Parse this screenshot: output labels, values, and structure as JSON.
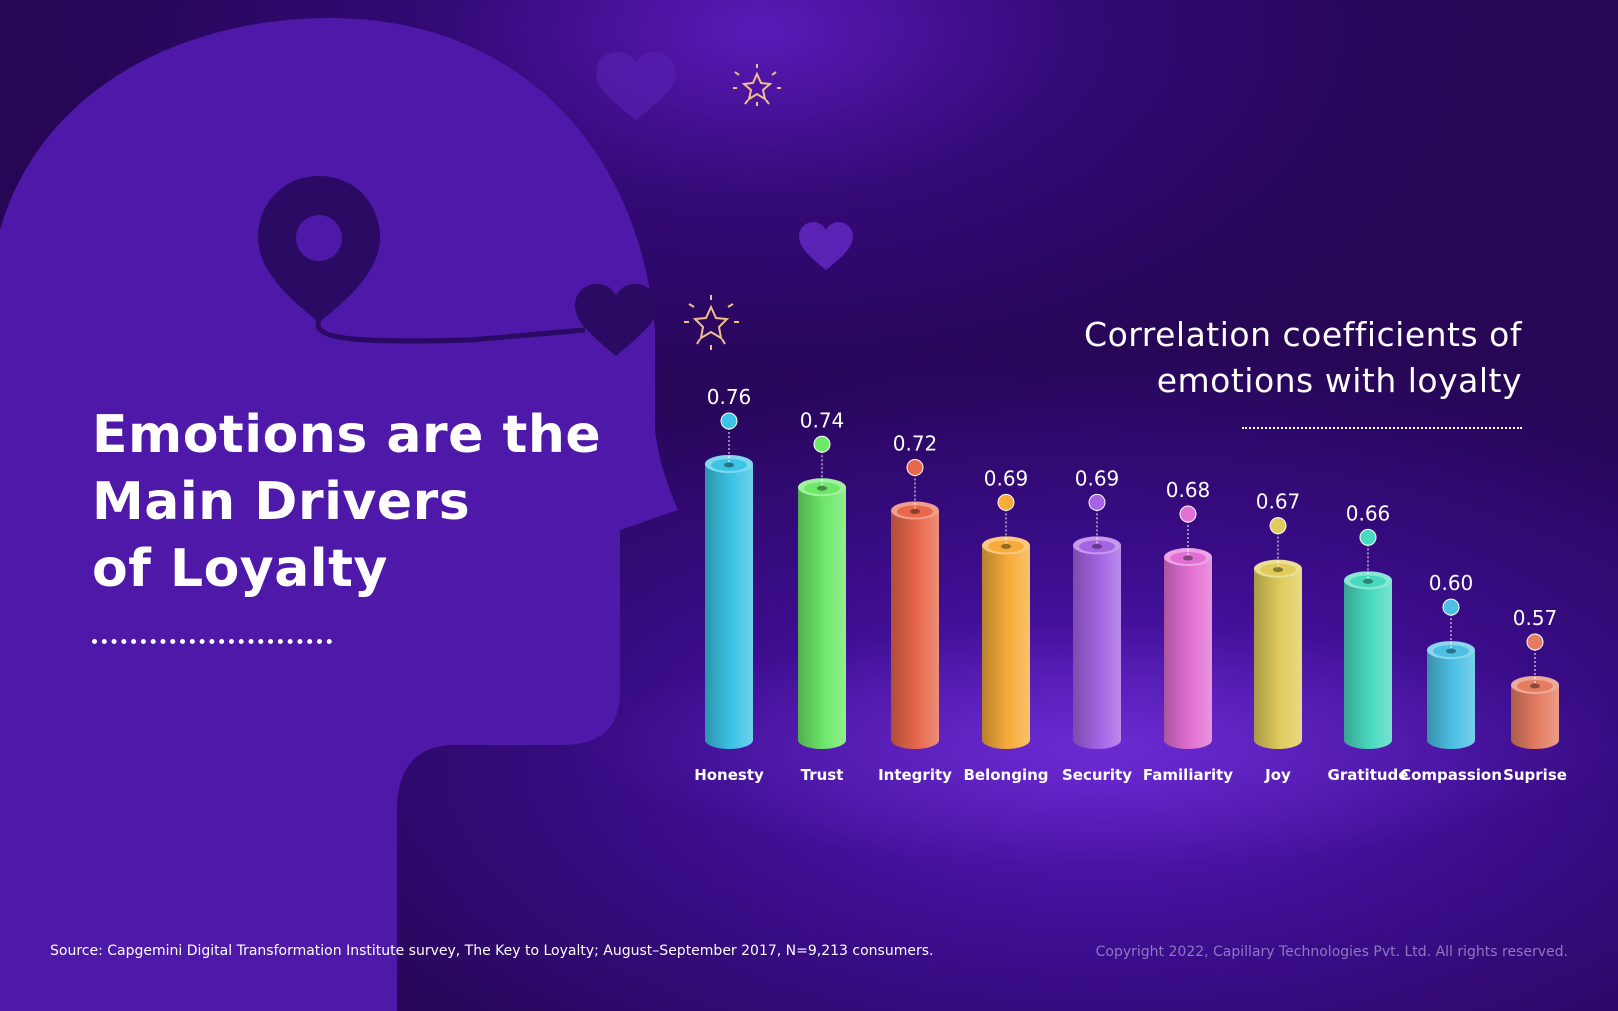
{
  "headline": {
    "line1": "Emotions are the",
    "line2": "Main Drivers",
    "line3": "of Loyalty"
  },
  "subtitle": {
    "line1": "Correlation coefficients of",
    "line2": "emotions with loyalty"
  },
  "footer": {
    "source": "Source: Capgemini Digital Transformation Institute survey, The Key to Loyalty; August–September 2017, N=9,213 consumers.",
    "copyright": "Copyright 2022, Capillary Technologies Pvt. Ltd. All rights reserved."
  },
  "colors": {
    "background": "#260655",
    "head_silhouette": "#4e18a8",
    "icon_dark": "#2a0a62"
  },
  "icons": [
    "location-pin-icon",
    "heart-icon",
    "star-icon"
  ],
  "chart_data": {
    "type": "bar",
    "title": "Correlation coefficients of emotions with loyalty",
    "categories": [
      "Honesty",
      "Trust",
      "Integrity",
      "Belonging",
      "Security",
      "Familiarity",
      "Joy",
      "Gratitude",
      "Compassion",
      "Suprise"
    ],
    "values": [
      0.76,
      0.74,
      0.72,
      0.69,
      0.69,
      0.68,
      0.67,
      0.66,
      0.6,
      0.57
    ],
    "value_labels": [
      "0.76",
      "0.74",
      "0.72",
      "0.69",
      "0.69",
      "0.68",
      "0.67",
      "0.66",
      "0.60",
      "0.57"
    ],
    "bar_colors": [
      "#3cc3e6",
      "#6ee86a",
      "#e8684c",
      "#f7ac3a",
      "#a564e4",
      "#e270d4",
      "#e0cc5c",
      "#4adac0",
      "#4cc0e4",
      "#e47c62"
    ],
    "xlabel": "",
    "ylabel": ""
  }
}
